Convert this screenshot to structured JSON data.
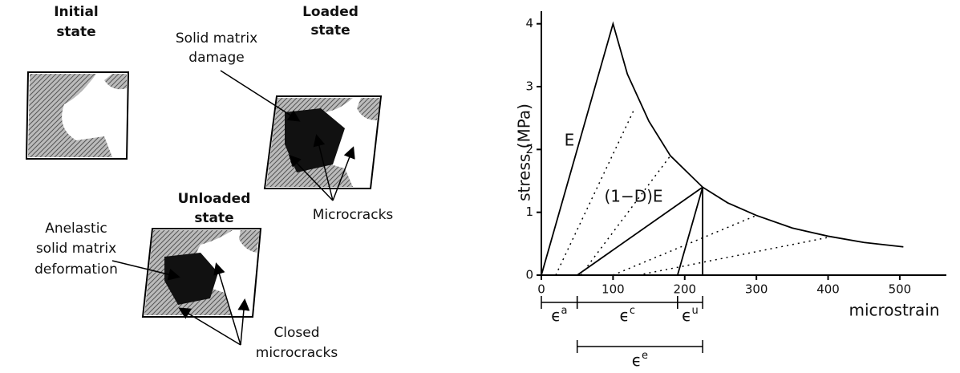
{
  "diagram": {
    "initial": {
      "lines": [
        "Initial",
        "state"
      ]
    },
    "loaded": {
      "lines": [
        "Loaded",
        "state"
      ]
    },
    "unloaded": {
      "lines": [
        "Unloaded",
        "state"
      ]
    },
    "damage": {
      "lines": [
        "Solid matrix",
        "damage"
      ]
    },
    "microcracks": {
      "lines": [
        "Microcracks"
      ]
    },
    "anelastic": {
      "lines": [
        "Anelastic",
        "solid matrix",
        "deformation"
      ]
    },
    "closed": {
      "lines": [
        "Closed",
        "microcracks"
      ]
    }
  },
  "chart_data": {
    "type": "line",
    "ylabel": "stress (MPa)",
    "xlabel": "microstrain",
    "xlim": [
      0,
      565
    ],
    "ylim": [
      0,
      4.2
    ],
    "xticks": [
      0,
      100,
      200,
      300,
      400,
      500
    ],
    "yticks": [
      0,
      1,
      2,
      3,
      4
    ],
    "series": [
      {
        "color": "#000",
        "style": "solid",
        "x": [
          0,
          100,
          120,
          150,
          180,
          225,
          260,
          300,
          350,
          400,
          450,
          505
        ],
        "values": [
          0,
          4,
          3.2,
          2.45,
          1.9,
          1.4,
          1.15,
          0.95,
          0.75,
          0.62,
          0.52,
          0.45
        ]
      },
      {
        "color": "#000",
        "style": "solid",
        "x": [
          50,
          225
        ],
        "values": [
          0,
          1.4
        ]
      },
      {
        "color": "#000",
        "style": "solid",
        "x": [
          190,
          225
        ],
        "values": [
          0,
          1.4
        ]
      },
      {
        "color": "#000",
        "style": "solid",
        "x": [
          225,
          225
        ],
        "values": [
          0,
          1.4
        ]
      },
      {
        "color": "#000",
        "style": "dotted",
        "x": [
          20,
          130
        ],
        "values": [
          0,
          2.65
        ]
      },
      {
        "color": "#000",
        "style": "dotted",
        "x": [
          55,
          180
        ],
        "values": [
          0,
          1.9
        ]
      },
      {
        "color": "#000",
        "style": "dotted",
        "x": [
          100,
          300
        ],
        "values": [
          0,
          0.95
        ]
      },
      {
        "color": "#000",
        "style": "dotted",
        "x": [
          135,
          400
        ],
        "values": [
          0,
          0.6
        ]
      }
    ],
    "annotations": [
      "E",
      "(1−D)E"
    ],
    "strain_brackets": [
      {
        "label": "ϵ",
        "sup": "a",
        "from": 0,
        "to": 50
      },
      {
        "label": "ϵ",
        "sup": "c",
        "from": 50,
        "to": 190
      },
      {
        "label": "ϵ",
        "sup": "u",
        "from": 190,
        "to": 225
      },
      {
        "label": "ϵ",
        "sup": "e",
        "from": 50,
        "to": 225
      }
    ]
  }
}
